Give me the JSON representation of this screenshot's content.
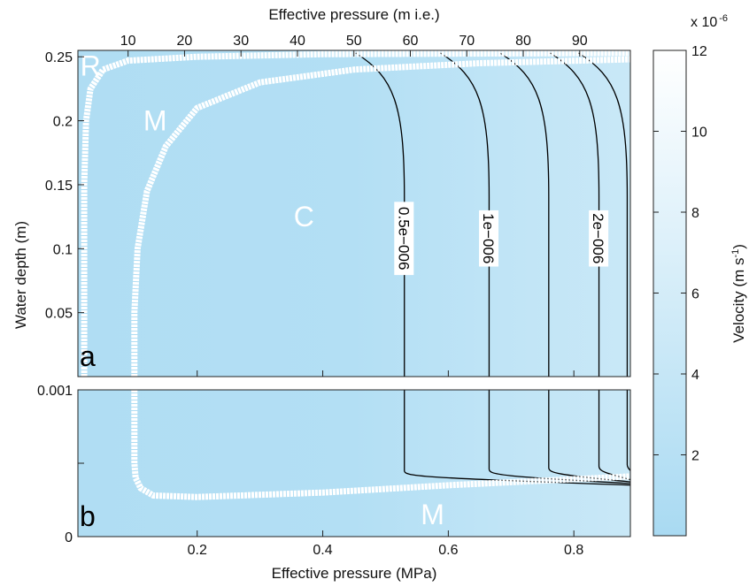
{
  "chart_data": [
    {
      "panel": "a",
      "type": "contour",
      "title": "",
      "xlabel": "Effective pressure (MPa)",
      "ylabel": "Water depth (m)",
      "secondary_xlabel": "Effective pressure (m i.e.)",
      "xlim": [
        0.01,
        0.89
      ],
      "ylim": [
        0,
        0.255
      ],
      "xticks": [
        0.2,
        0.4,
        0.6,
        0.8
      ],
      "xtick_labels": [
        "0.2",
        "0.4",
        "0.6",
        "0.8"
      ],
      "yticks": [
        0.05,
        0.1,
        0.15,
        0.2,
        0.25
      ],
      "ytick_labels": [
        "0.05",
        "0.1",
        "0.15",
        "0.2",
        "0.25"
      ],
      "secondary_xticks": [
        10,
        20,
        30,
        40,
        50,
        60,
        70,
        80,
        90
      ],
      "secondary_xtick_labels": [
        "10",
        "20",
        "30",
        "40",
        "50",
        "60",
        "70",
        "80",
        "90"
      ],
      "panel_label": "a",
      "region_labels": [
        {
          "text": "R",
          "x": 0.03,
          "y": 0.243
        },
        {
          "text": "M",
          "x": 0.133,
          "y": 0.2
        },
        {
          "text": "C",
          "x": 0.37,
          "y": 0.125
        }
      ],
      "contours": [
        {
          "label": "0.5e−006",
          "x_vertical": 0.53,
          "label_x": 0.528,
          "label_y": 0.108
        },
        {
          "label": "1e−006",
          "x_vertical": 0.665,
          "label_x": 0.663,
          "label_y": 0.108
        },
        {
          "label": "",
          "x_vertical": 0.76
        },
        {
          "label": "2e−006",
          "x_vertical": 0.84,
          "label_x": 0.838,
          "label_y": 0.108
        },
        {
          "label": "",
          "x_vertical": 0.885
        }
      ],
      "regime_boundaries": [
        {
          "name": "R-M",
          "points": [
            [
              0.02,
              0.0
            ],
            [
              0.02,
              0.15
            ],
            [
              0.023,
              0.2
            ],
            [
              0.03,
              0.225
            ],
            [
              0.05,
              0.24
            ],
            [
              0.09,
              0.247
            ],
            [
              0.2,
              0.25
            ],
            [
              0.4,
              0.252
            ],
            [
              0.89,
              0.253
            ]
          ]
        },
        {
          "name": "M-C",
          "points": [
            [
              0.1,
              0.0
            ],
            [
              0.1,
              0.05
            ],
            [
              0.105,
              0.1
            ],
            [
              0.12,
              0.145
            ],
            [
              0.15,
              0.18
            ],
            [
              0.2,
              0.21
            ],
            [
              0.3,
              0.23
            ],
            [
              0.45,
              0.24
            ],
            [
              0.65,
              0.245
            ],
            [
              0.89,
              0.248
            ]
          ]
        }
      ]
    },
    {
      "panel": "b",
      "type": "contour",
      "title": "",
      "xlabel": "Effective pressure (MPa)",
      "ylabel": "Water depth (m)",
      "xlim": [
        0.01,
        0.89
      ],
      "ylim": [
        0,
        0.001
      ],
      "yticks": [
        0,
        0.001
      ],
      "ytick_labels": [
        "0",
        "0.001"
      ],
      "panel_label": "b",
      "region_labels": [
        {
          "text": "M",
          "x": 0.575,
          "y": 0.00015
        }
      ],
      "contours": [
        {
          "x_vertical": 0.53,
          "knee_y": 0.00045
        },
        {
          "x_vertical": 0.665,
          "knee_y": 0.00046
        },
        {
          "x_vertical": 0.76,
          "knee_y": 0.00047
        },
        {
          "x_vertical": 0.84,
          "knee_y": 0.00048
        },
        {
          "x_vertical": 0.885,
          "knee_y": 0.00049
        }
      ],
      "regime_boundaries": [
        {
          "name": "M-C",
          "points": [
            [
              0.1,
              0.001
            ],
            [
              0.1,
              0.0005
            ],
            [
              0.102,
              0.0004
            ],
            [
              0.11,
              0.00033
            ],
            [
              0.13,
              0.00028
            ],
            [
              0.2,
              0.00027
            ],
            [
              0.4,
              0.0003
            ],
            [
              0.6,
              0.00035
            ],
            [
              0.89,
              0.00041
            ]
          ]
        }
      ]
    }
  ],
  "colorbar": {
    "label": "Velocity (m s⁻¹)",
    "label_main": "Velocity (m s",
    "label_sup": "-1",
    "label_end": ")",
    "range": [
      0,
      12
    ],
    "ticks": [
      2,
      4,
      6,
      8,
      10,
      12
    ],
    "tick_labels": [
      "2",
      "4",
      "6",
      "8",
      "10",
      "12"
    ],
    "multiplier": "x 10",
    "multiplier_exp": "-6",
    "color_low": "#a9daf2",
    "color_high": "#ffffff"
  }
}
